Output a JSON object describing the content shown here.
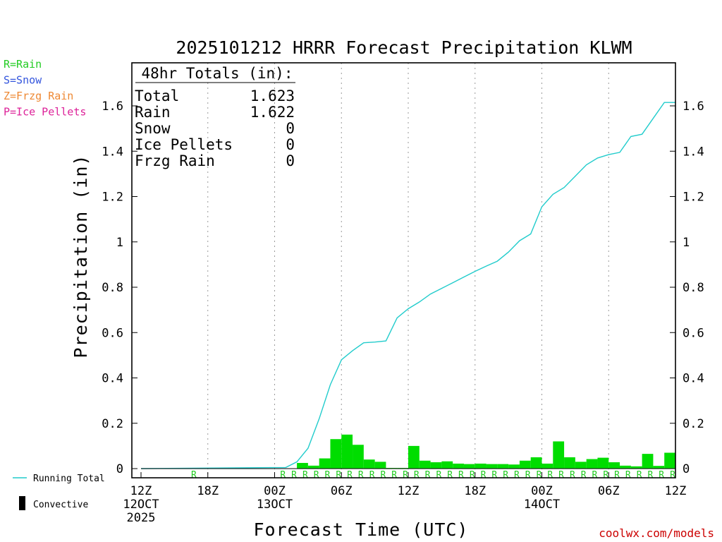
{
  "title": "2025101212 HRRR Forecast Precipitation KLWM",
  "ylabel": "Precipitation (in)",
  "xlabel": "Forecast Time (UTC)",
  "credit": "coolwx.com/models",
  "legend_top": [
    {
      "text": "R=Rain",
      "color": "#22cc22"
    },
    {
      "text": "S=Snow",
      "color": "#3355dd"
    },
    {
      "text": "Z=Frzg Rain",
      "color": "#ee8833"
    },
    {
      "text": "P=Ice Pellets",
      "color": "#dd2299"
    }
  ],
  "legend_bottom": {
    "running_total": "Running Total",
    "running_total_color": "#22cccc",
    "convective": "Convective",
    "convective_color": "#000000"
  },
  "totals": {
    "header": "48hr Totals (in):",
    "rows": [
      {
        "label": "Total",
        "value": "1.623"
      },
      {
        "label": "Rain",
        "value": "1.622"
      },
      {
        "label": "Snow",
        "value": "0"
      },
      {
        "label": "Ice Pellets",
        "value": "0"
      },
      {
        "label": "Frzg Rain",
        "value": "0"
      }
    ]
  },
  "chart_data": {
    "type": "bar",
    "x_unit": "forecast hour",
    "xlim": [
      0,
      48
    ],
    "ylim": [
      -0.04,
      1.8
    ],
    "yticks": [
      0,
      0.2,
      0.4,
      0.6,
      0.8,
      1,
      1.2,
      1.4,
      1.6
    ],
    "ytick_labels": [
      "0",
      "0.2",
      "0.4",
      "0.6",
      "0.8",
      "1",
      "1.2",
      "1.4",
      "1.6"
    ],
    "xticks": [
      {
        "x": 0,
        "lines": [
          "12Z",
          "12OCT",
          "2025"
        ]
      },
      {
        "x": 6,
        "lines": [
          "18Z"
        ]
      },
      {
        "x": 12,
        "lines": [
          "00Z",
          "13OCT"
        ]
      },
      {
        "x": 18,
        "lines": [
          "06Z"
        ]
      },
      {
        "x": 24,
        "lines": [
          "12Z"
        ]
      },
      {
        "x": 30,
        "lines": [
          "18Z"
        ]
      },
      {
        "x": 36,
        "lines": [
          "00Z",
          "14OCT"
        ]
      },
      {
        "x": 42,
        "lines": [
          "06Z"
        ]
      },
      {
        "x": 48,
        "lines": [
          "12Z"
        ]
      }
    ],
    "bar_color": "#00dd00",
    "line_color": "#22cccc",
    "hourly_precip": [
      0,
      0,
      0,
      0,
      0,
      0,
      0,
      0,
      0,
      0,
      0,
      0,
      0,
      0,
      0.025,
      0.013,
      0.045,
      0.13,
      0.15,
      0.105,
      0.04,
      0.03,
      0.003,
      0.003,
      0.1,
      0.035,
      0.028,
      0.032,
      0.022,
      0.02,
      0.022,
      0.02,
      0.02,
      0.018,
      0.035,
      0.05,
      0.022,
      0.12,
      0.05,
      0.03,
      0.042,
      0.048,
      0.028,
      0.013,
      0.01,
      0.065,
      0.012,
      0.07
    ],
    "running_total": {
      "x": [
        0,
        13,
        14,
        15,
        16,
        17,
        18,
        19,
        20,
        21,
        22,
        23,
        24,
        25,
        26,
        27,
        28,
        29,
        30,
        31,
        32,
        33,
        34,
        35,
        36,
        37,
        38,
        39,
        40,
        41,
        42,
        43,
        44,
        45,
        46,
        47,
        48
      ],
      "y": [
        0,
        0.005,
        0.03,
        0.09,
        0.22,
        0.37,
        0.48,
        0.52,
        0.555,
        0.558,
        0.563,
        0.665,
        0.705,
        0.735,
        0.77,
        0.795,
        0.82,
        0.845,
        0.87,
        0.893,
        0.915,
        0.955,
        1.005,
        1.035,
        1.155,
        1.21,
        1.24,
        1.29,
        1.34,
        1.37,
        1.385,
        1.395,
        1.465,
        1.475,
        1.545,
        1.615,
        1.615
      ]
    },
    "ptype_marker": "R",
    "ptype_hours": [
      5,
      13,
      14,
      15,
      16,
      17,
      18,
      19,
      20,
      21,
      22,
      23,
      24,
      25,
      26,
      27,
      28,
      29,
      30,
      31,
      32,
      33,
      34,
      35,
      36,
      37,
      38,
      39,
      40,
      41,
      42,
      43,
      44,
      45,
      46,
      47,
      48
    ],
    "grid": "vertical dotted at 6-hour intervals"
  }
}
